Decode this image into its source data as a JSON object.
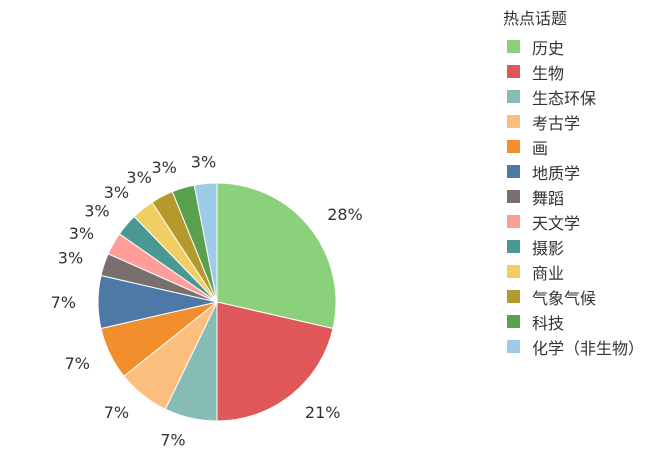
{
  "chart_data": {
    "type": "pie",
    "legend_title": "热点话题",
    "legend_position": "right",
    "slices": [
      {
        "label": "历史",
        "value": 28,
        "display": "28%",
        "color": "#8bd07a"
      },
      {
        "label": "生物",
        "value": 21,
        "display": "21%",
        "color": "#e05759"
      },
      {
        "label": "生态环保",
        "value": 7,
        "display": "7%",
        "color": "#85bcb6"
      },
      {
        "label": "考古学",
        "value": 7,
        "display": "7%",
        "color": "#fcbe7d"
      },
      {
        "label": "画",
        "value": 7,
        "display": "7%",
        "color": "#f28e2c"
      },
      {
        "label": "地质学",
        "value": 7,
        "display": "7%",
        "color": "#4e79a7"
      },
      {
        "label": "舞蹈",
        "value": 3,
        "display": "3%",
        "color": "#79706e"
      },
      {
        "label": "天文学",
        "value": 3,
        "display": "3%",
        "color": "#ff9d9a"
      },
      {
        "label": "摄影",
        "value": 3,
        "display": "3%",
        "color": "#499894"
      },
      {
        "label": "商业",
        "value": 3,
        "display": "3%",
        "color": "#f1ce63"
      },
      {
        "label": "气象气候",
        "value": 3,
        "display": "3%",
        "color": "#b6992d"
      },
      {
        "label": "科技",
        "value": 3,
        "display": "3%",
        "color": "#59a14f"
      },
      {
        "label": "化学（非生物）",
        "value": 3,
        "display": "3%",
        "color": "#a0cbe8"
      }
    ]
  }
}
